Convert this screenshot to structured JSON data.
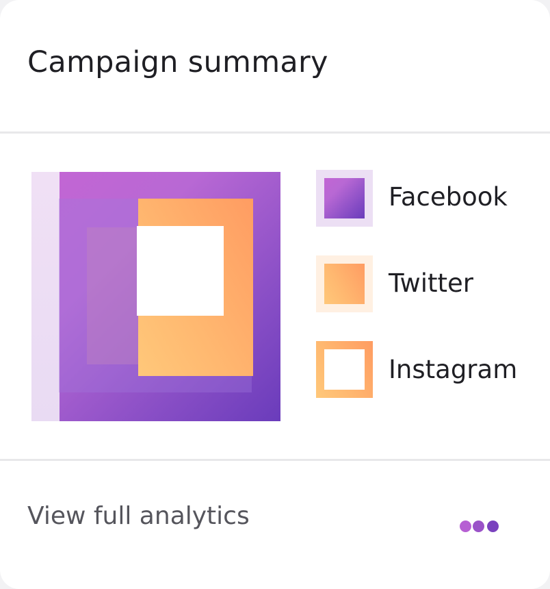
{
  "header": {
    "title": "Campaign summary"
  },
  "legend": [
    {
      "label": "Facebook",
      "color": "#9b55cc"
    },
    {
      "label": "Twitter",
      "color": "#ffaa6a"
    },
    {
      "label": "Instagram",
      "color": "#ffffff"
    }
  ],
  "footer": {
    "link_label": "View full analytics",
    "menu_icon": "more-dots-icon"
  }
}
